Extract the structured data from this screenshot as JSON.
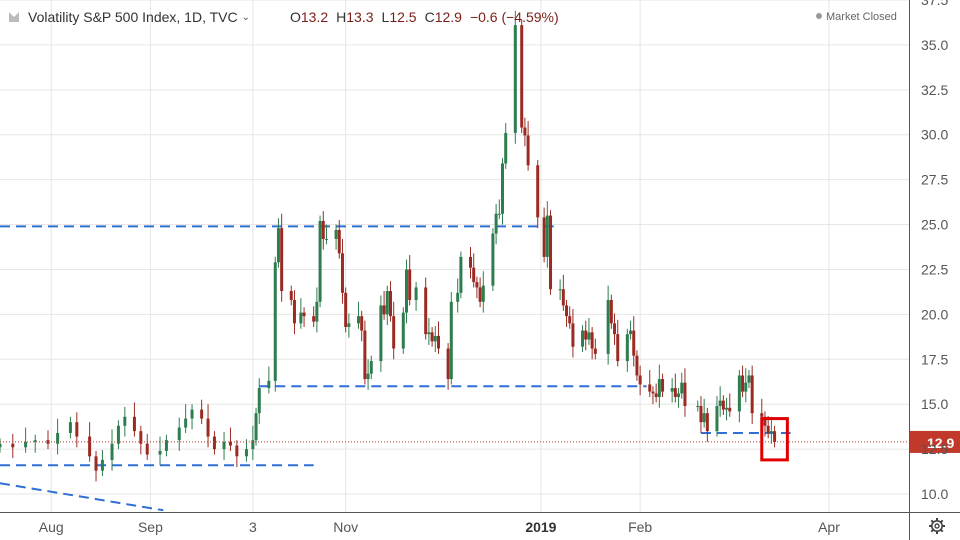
{
  "header": {
    "symbol_title": "Volatility S&P 500 Index, 1D, TVC",
    "ohlc": [
      {
        "label": "O",
        "value": "13.2"
      },
      {
        "label": "H",
        "value": "13.3"
      },
      {
        "label": "L",
        "value": "12.5"
      },
      {
        "label": "C",
        "value": "12.9"
      }
    ],
    "change": "−0.6 (−4.59%)",
    "market_status": "Market Closed"
  },
  "colors": {
    "up": "#2e7d4f",
    "down": "#9b2b22",
    "level_line": "#2f6fd6",
    "price_label_bg": "#c0392b",
    "price_line": "#c0392b",
    "highlight_box": "#e00000",
    "grid": "#e6e6e6"
  },
  "chart_data": {
    "type": "candlestick",
    "y_axis": {
      "range": [
        9.0,
        37.5
      ],
      "ticks": [
        "10.0",
        "12.5",
        "15.0",
        "17.5",
        "20.0",
        "22.5",
        "25.0",
        "27.5",
        "30.0",
        "32.5",
        "35.0",
        "37.5"
      ],
      "position": "right"
    },
    "x_axis": {
      "range": [
        "2018-07-16",
        "2019-04-26"
      ],
      "ticks": [
        {
          "label": "Aug",
          "date": "2018-08-01",
          "bold": false
        },
        {
          "label": "Sep",
          "date": "2018-09-01",
          "bold": false
        },
        {
          "label": "3",
          "date": "2018-10-03",
          "bold": false
        },
        {
          "label": "Nov",
          "date": "2018-11-01",
          "bold": false
        },
        {
          "label": "2019",
          "date": "2019-01-01",
          "bold": true
        },
        {
          "label": "Feb",
          "date": "2019-02-01",
          "bold": false
        },
        {
          "label": "Apr",
          "date": "2019-04-01",
          "bold": false
        }
      ]
    },
    "last_price_label": "12.9",
    "last_price": 12.9,
    "grid": "vertical and horizontal",
    "closes": [
      [
        "2018-07-16",
        12.8
      ],
      [
        "2018-07-20",
        12.6
      ],
      [
        "2018-07-24",
        12.9
      ],
      [
        "2018-07-27",
        13.0
      ],
      [
        "2018-07-31",
        12.8
      ],
      [
        "2018-08-03",
        13.4
      ],
      [
        "2018-08-07",
        14.0
      ],
      [
        "2018-08-09",
        13.2
      ],
      [
        "2018-08-13",
        12.1
      ],
      [
        "2018-08-15",
        11.3
      ],
      [
        "2018-08-17",
        11.9
      ],
      [
        "2018-08-20",
        12.8
      ],
      [
        "2018-08-22",
        13.8
      ],
      [
        "2018-08-24",
        14.3
      ],
      [
        "2018-08-27",
        13.5
      ],
      [
        "2018-08-29",
        12.8
      ],
      [
        "2018-08-31",
        12.2
      ],
      [
        "2018-09-04",
        12.4
      ],
      [
        "2018-09-06",
        13.0
      ],
      [
        "2018-09-10",
        13.7
      ],
      [
        "2018-09-12",
        14.2
      ],
      [
        "2018-09-14",
        14.7
      ],
      [
        "2018-09-17",
        14.2
      ],
      [
        "2018-09-19",
        13.2
      ],
      [
        "2018-09-21",
        12.5
      ],
      [
        "2018-09-24",
        12.9
      ],
      [
        "2018-09-26",
        12.7
      ],
      [
        "2018-09-28",
        12.1
      ],
      [
        "2018-10-01",
        12.5
      ],
      [
        "2018-10-03",
        13.0
      ],
      [
        "2018-10-04",
        14.5
      ],
      [
        "2018-10-05",
        15.9
      ],
      [
        "2018-10-08",
        16.3
      ],
      [
        "2018-10-10",
        22.9
      ],
      [
        "2018-10-11",
        24.8
      ],
      [
        "2018-10-12",
        21.3
      ],
      [
        "2018-10-15",
        20.8
      ],
      [
        "2018-10-16",
        19.5
      ],
      [
        "2018-10-18",
        20.1
      ],
      [
        "2018-10-19",
        19.9
      ],
      [
        "2018-10-22",
        19.6
      ],
      [
        "2018-10-23",
        20.7
      ],
      [
        "2018-10-24",
        25.2
      ],
      [
        "2018-10-25",
        24.2
      ],
      [
        "2018-10-26",
        24.2
      ],
      [
        "2018-10-29",
        24.7
      ],
      [
        "2018-10-30",
        23.4
      ],
      [
        "2018-10-31",
        21.2
      ],
      [
        "2018-11-01",
        19.3
      ],
      [
        "2018-11-02",
        19.5
      ],
      [
        "2018-11-05",
        19.9
      ],
      [
        "2018-11-06",
        19.1
      ],
      [
        "2018-11-07",
        16.4
      ],
      [
        "2018-11-08",
        16.7
      ],
      [
        "2018-11-09",
        17.4
      ],
      [
        "2018-11-12",
        20.5
      ],
      [
        "2018-11-13",
        20.0
      ],
      [
        "2018-11-14",
        21.3
      ],
      [
        "2018-11-15",
        19.9
      ],
      [
        "2018-11-16",
        18.1
      ],
      [
        "2018-11-19",
        20.1
      ],
      [
        "2018-11-20",
        22.5
      ],
      [
        "2018-11-21",
        20.8
      ],
      [
        "2018-11-23",
        21.5
      ],
      [
        "2018-11-26",
        18.9
      ],
      [
        "2018-11-27",
        19.0
      ],
      [
        "2018-11-28",
        18.5
      ],
      [
        "2018-11-29",
        18.8
      ],
      [
        "2018-11-30",
        18.1
      ],
      [
        "2018-12-03",
        16.4
      ],
      [
        "2018-12-04",
        20.7
      ],
      [
        "2018-12-06",
        21.2
      ],
      [
        "2018-12-07",
        23.2
      ],
      [
        "2018-12-10",
        22.6
      ],
      [
        "2018-12-11",
        21.8
      ],
      [
        "2018-12-12",
        21.5
      ],
      [
        "2018-12-13",
        20.7
      ],
      [
        "2018-12-14",
        21.6
      ],
      [
        "2018-12-17",
        24.5
      ],
      [
        "2018-12-18",
        25.6
      ],
      [
        "2018-12-19",
        25.6
      ],
      [
        "2018-12-20",
        28.4
      ],
      [
        "2018-12-21",
        30.1
      ],
      [
        "2018-12-24",
        36.1
      ],
      [
        "2018-12-26",
        30.4
      ],
      [
        "2018-12-27",
        29.96
      ],
      [
        "2018-12-28",
        28.3
      ],
      [
        "2018-12-31",
        25.4
      ],
      [
        "2019-01-02",
        23.2
      ],
      [
        "2019-01-03",
        25.5
      ],
      [
        "2019-01-04",
        21.4
      ],
      [
        "2019-01-07",
        21.4
      ],
      [
        "2019-01-08",
        20.5
      ],
      [
        "2019-01-09",
        19.9
      ],
      [
        "2019-01-10",
        19.5
      ],
      [
        "2019-01-11",
        18.2
      ],
      [
        "2019-01-14",
        19.1
      ],
      [
        "2019-01-15",
        18.6
      ],
      [
        "2019-01-16",
        19.0
      ],
      [
        "2019-01-17",
        18.1
      ],
      [
        "2019-01-18",
        17.8
      ],
      [
        "2019-01-22",
        20.8
      ],
      [
        "2019-01-23",
        19.5
      ],
      [
        "2019-01-24",
        18.9
      ],
      [
        "2019-01-25",
        17.4
      ],
      [
        "2019-01-28",
        18.9
      ],
      [
        "2019-01-29",
        19.1
      ],
      [
        "2019-01-30",
        17.7
      ],
      [
        "2019-01-31",
        16.6
      ],
      [
        "2019-02-01",
        16.1
      ],
      [
        "2019-02-04",
        15.7
      ],
      [
        "2019-02-05",
        15.6
      ],
      [
        "2019-02-06",
        15.4
      ],
      [
        "2019-02-07",
        16.4
      ],
      [
        "2019-02-08",
        15.7
      ],
      [
        "2019-02-11",
        15.9
      ],
      [
        "2019-02-12",
        15.4
      ],
      [
        "2019-02-13",
        15.6
      ],
      [
        "2019-02-14",
        16.2
      ],
      [
        "2019-02-15",
        14.9
      ],
      [
        "2019-02-19",
        14.9
      ],
      [
        "2019-02-20",
        14.0
      ],
      [
        "2019-02-21",
        14.5
      ],
      [
        "2019-02-22",
        13.5
      ],
      [
        "2019-02-25",
        14.9
      ],
      [
        "2019-02-26",
        15.2
      ],
      [
        "2019-02-27",
        14.7
      ],
      [
        "2019-02-28",
        14.8
      ],
      [
        "2019-03-01",
        14.6
      ],
      [
        "2019-03-04",
        16.6
      ],
      [
        "2019-03-05",
        15.7
      ],
      [
        "2019-03-06",
        16.2
      ],
      [
        "2019-03-07",
        16.6
      ],
      [
        "2019-03-08",
        14.5
      ],
      [
        "2019-03-11",
        14.3
      ],
      [
        "2019-03-12",
        13.8
      ],
      [
        "2019-03-13",
        13.4
      ],
      [
        "2019-03-14",
        13.5
      ],
      [
        "2019-03-15",
        12.9
      ]
    ],
    "horizontal_levels": [
      {
        "value": 24.9,
        "from": "2018-07-16",
        "to": "2019-01-05"
      },
      {
        "value": 16.0,
        "from": "2018-10-05",
        "to": "2019-02-03"
      },
      {
        "value": 11.6,
        "from": "2018-07-16",
        "to": "2018-10-22"
      },
      {
        "value": 13.4,
        "from": "2019-02-20",
        "to": "2019-03-20"
      }
    ],
    "trendline": {
      "from": [
        "2018-07-16",
        10.6
      ],
      "to": [
        "2018-09-05",
        9.1
      ]
    },
    "highlight_box": {
      "from": [
        "2019-03-11",
        14.2
      ],
      "to": [
        "2019-03-19",
        11.9
      ]
    }
  }
}
